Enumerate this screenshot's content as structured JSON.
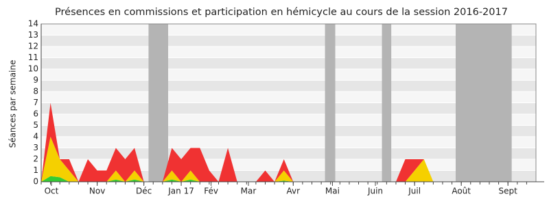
{
  "chart_data": {
    "type": "stacked-area",
    "title": "Présences en commissions et participation en hémicycle au cours de la session 2016-2017",
    "y_label": "Séances par semaine",
    "x": [
      0,
      1,
      2,
      3,
      4,
      5,
      6,
      7,
      8,
      9,
      10,
      11,
      12,
      13,
      14,
      15,
      16,
      17,
      18,
      19,
      20,
      21,
      22,
      23,
      24,
      25,
      26,
      27,
      28,
      29,
      30,
      31,
      32,
      33,
      34,
      35,
      36,
      37,
      38,
      39,
      40,
      41,
      42,
      43,
      44,
      45,
      46,
      47,
      48,
      49,
      50,
      51,
      52
    ],
    "series": [
      {
        "color": "#33cc33",
        "values": [
          0,
          0.5,
          0.4,
          0,
          0,
          0,
          0,
          0,
          0.2,
          0,
          0.2,
          0,
          0,
          0,
          0.2,
          0,
          0.2,
          0,
          0,
          0,
          0,
          0,
          0,
          0,
          0,
          0,
          0.1,
          0,
          0,
          0,
          0,
          0,
          0,
          0,
          0,
          0,
          0,
          0,
          0,
          0,
          0,
          0,
          0,
          0,
          0,
          0,
          0,
          0,
          0,
          0,
          0,
          0,
          0
        ]
      },
      {
        "color": "#f5d000",
        "values": [
          0,
          3.5,
          1.6,
          1,
          0,
          0,
          0,
          0,
          0.8,
          0,
          0.8,
          0,
          0,
          0,
          0.8,
          0,
          0.8,
          0,
          0,
          0,
          0,
          0,
          0,
          0,
          0,
          0,
          0.9,
          0,
          0,
          0,
          0,
          0,
          0,
          0,
          0,
          0,
          0,
          0,
          0,
          0,
          1,
          2,
          0,
          0,
          0,
          0,
          0,
          0,
          0,
          0,
          0,
          0,
          0
        ]
      },
      {
        "color": "#f03232",
        "values": [
          0,
          3,
          0,
          1,
          0,
          2,
          1,
          1,
          2,
          2,
          2,
          0,
          0,
          0,
          2,
          2,
          2,
          3,
          1,
          0,
          3,
          0,
          0,
          0,
          1,
          0,
          1,
          0,
          0,
          0,
          0,
          0,
          0,
          0,
          0,
          0,
          0,
          0,
          0,
          2,
          1,
          0,
          0,
          0,
          0,
          0,
          0,
          0,
          0,
          0,
          0,
          0,
          0
        ]
      }
    ],
    "xlim": [
      0,
      53
    ],
    "xticks": [
      {
        "value": 1.1,
        "label": "Oct"
      },
      {
        "value": 6,
        "label": "Nov"
      },
      {
        "value": 11,
        "label": "Déc"
      },
      {
        "value": 15,
        "label": "Jan 17"
      },
      {
        "value": 18.2,
        "label": "Fév"
      },
      {
        "value": 22.2,
        "label": "Mar"
      },
      {
        "value": 27,
        "label": "Avr"
      },
      {
        "value": 31.2,
        "label": "Mai"
      },
      {
        "value": 35.8,
        "label": "Juin"
      },
      {
        "value": 40,
        "label": "Juil"
      },
      {
        "value": 45,
        "label": "Août"
      },
      {
        "value": 50,
        "label": "Sept"
      }
    ],
    "ylim": [
      0,
      14
    ],
    "yticks": [
      0,
      1,
      2,
      3,
      4,
      5,
      6,
      7,
      8,
      9,
      10,
      11,
      12,
      13,
      14
    ],
    "shaded": [
      [
        11.5,
        13.6
      ],
      [
        30.4,
        31.5
      ],
      [
        36.5,
        37.5
      ],
      [
        44.4,
        50.4
      ]
    ],
    "shade_color": "#b4b4b4",
    "grid": true
  }
}
